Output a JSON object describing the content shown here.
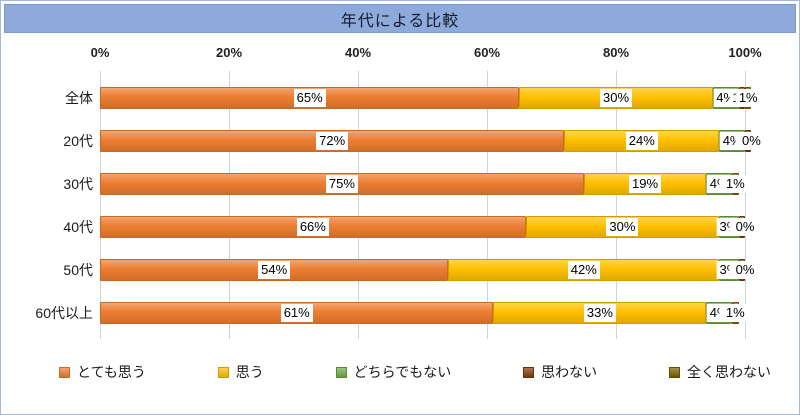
{
  "title_bar": {
    "text": "年代による比較",
    "bg": "#8EAADB",
    "text_color": "#141C2E"
  },
  "frame": {
    "border_color": "#A3B8E0",
    "gridline_color": "#C9D4E8"
  },
  "chart_data": {
    "type": "bar",
    "stacked": true,
    "orientation": "horizontal",
    "title": "年代による比較",
    "categories": [
      "全体",
      "20代",
      "30代",
      "40代",
      "50代",
      "60代以上"
    ],
    "series": [
      {
        "name": "とても思う",
        "color": "#ED7D31",
        "border": "#CB6A23",
        "values": [
          65,
          72,
          75,
          66,
          54,
          61
        ]
      },
      {
        "name": "思う",
        "color": "#FFC000",
        "border": "#D29B00",
        "values": [
          30,
          24,
          19,
          30,
          42,
          33
        ]
      },
      {
        "name": "どちらでもない",
        "color": "#70AD47",
        "border": "#5A8A39",
        "values": [
          4,
          4,
          4,
          3,
          3,
          4
        ]
      },
      {
        "name": "思わない",
        "color": "#843C0C",
        "border": "#6B3009",
        "values": [
          1,
          1,
          0,
          1,
          1,
          0
        ]
      },
      {
        "name": "全く思わない",
        "color": "#7F6000",
        "border": "#665000",
        "values": [
          1,
          0,
          1,
          0,
          0,
          1
        ]
      }
    ],
    "x_ticks": [
      "0%",
      "20%",
      "40%",
      "60%",
      "80%",
      "100%"
    ],
    "xlim": [
      0,
      100
    ],
    "grid": true,
    "data_labels": "center-of-segment, percent, white background",
    "legend_position": "bottom"
  }
}
